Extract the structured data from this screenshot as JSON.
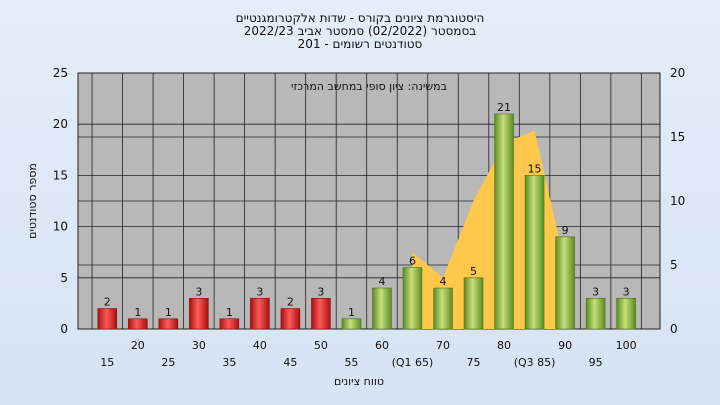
{
  "chart_data": {
    "type": "bar",
    "title_lines": [
      "היסטוגרמת ציונים בקורס - שדות אלקטרומגנטיים",
      "בסמסטר  (02/2022)  סמסטר אביב 2022/23",
      "סטודנטים רשומים - 201"
    ],
    "subtitle": "במשינה: ציון סופי במחשב המרכזי",
    "ylabel": "מספר סטודנטים",
    "xlabel": "טווח ציונים",
    "ylim": [
      0,
      25
    ],
    "y_ticks": [
      0,
      5,
      10,
      15,
      20,
      25
    ],
    "y2lim": [
      0,
      20
    ],
    "y2_ticks": [
      0,
      5,
      10,
      15,
      20
    ],
    "grid": true,
    "categories": [
      "15",
      "20",
      "25",
      "30",
      "35",
      "40",
      "45",
      "50",
      "55",
      "60",
      "65",
      "70",
      "75",
      "80",
      "85",
      "90",
      "95",
      "100"
    ],
    "category_labels": [
      "15",
      "20",
      "25",
      "30",
      "35",
      "40",
      "45",
      "50",
      "55",
      "60",
      "(Q1 65)",
      "70",
      "75",
      "80",
      "(Q3 85)",
      "90",
      "95",
      "100"
    ],
    "values": [
      2,
      1,
      1,
      3,
      1,
      3,
      2,
      3,
      1,
      4,
      6,
      4,
      5,
      21,
      15,
      9,
      3,
      3
    ],
    "colors": [
      "red",
      "red",
      "red",
      "red",
      "red",
      "red",
      "red",
      "red",
      "green",
      "green",
      "green",
      "green",
      "green",
      "green",
      "green",
      "green",
      "green",
      "green"
    ],
    "value_labels": [
      "2",
      "1",
      "1",
      "3",
      "1",
      "3",
      "2",
      "3",
      "1",
      "4",
      "6",
      "4",
      "5",
      "21",
      "15",
      "9",
      "3",
      "3"
    ],
    "area_overlay": {
      "axis": "secondary",
      "x": [
        "65",
        "70",
        "75",
        "80",
        "85",
        "90"
      ],
      "values": [
        6,
        4,
        10,
        14.5,
        15.5,
        5
      ]
    },
    "colors_hex": {
      "red": "#d42a2a",
      "green": "#8ab83e",
      "area": "#ffc84a",
      "plot_bg": "#b8b8b8"
    }
  }
}
